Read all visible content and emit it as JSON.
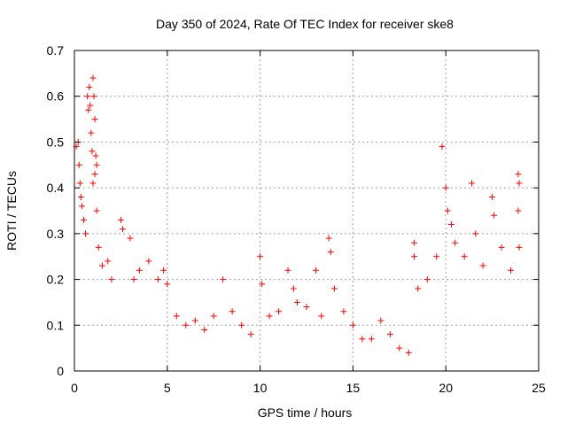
{
  "chart_data": {
    "type": "scatter",
    "title": "Day 350 of 2024, Rate Of TEC Index for receiver ske8",
    "xlabel": "GPS time / hours",
    "ylabel": "ROTI / TECUs",
    "xlim": [
      0,
      25
    ],
    "ylim": [
      0,
      0.7
    ],
    "xticks": [
      0,
      5,
      10,
      15,
      20,
      25
    ],
    "xtick_labels": [
      "0",
      "5",
      "10",
      "15",
      "20",
      "25"
    ],
    "yticks": [
      0,
      0.1,
      0.2,
      0.3,
      0.4,
      0.5,
      0.6,
      0.7
    ],
    "ytick_labels": [
      "0",
      "0.1",
      "0.2",
      "0.3",
      "0.4",
      "0.5",
      "0.6",
      "0.7"
    ],
    "grid": true,
    "marker": "+",
    "marker_color": "#ff0000",
    "series": [
      {
        "name": "ROTI",
        "points": [
          [
            0.1,
            0.49
          ],
          [
            0.2,
            0.5
          ],
          [
            0.25,
            0.45
          ],
          [
            0.3,
            0.41
          ],
          [
            0.35,
            0.38
          ],
          [
            0.4,
            0.36
          ],
          [
            0.5,
            0.33
          ],
          [
            0.6,
            0.3
          ],
          [
            0.7,
            0.6
          ],
          [
            0.75,
            0.57
          ],
          [
            0.8,
            0.62
          ],
          [
            0.85,
            0.58
          ],
          [
            0.9,
            0.52
          ],
          [
            0.95,
            0.48
          ],
          [
            1.0,
            0.64
          ],
          [
            1.05,
            0.6
          ],
          [
            1.1,
            0.55
          ],
          [
            1.15,
            0.47
          ],
          [
            1.2,
            0.45
          ],
          [
            1.1,
            0.43
          ],
          [
            1.0,
            0.41
          ],
          [
            1.2,
            0.35
          ],
          [
            1.3,
            0.27
          ],
          [
            1.5,
            0.23
          ],
          [
            1.8,
            0.24
          ],
          [
            2.0,
            0.2
          ],
          [
            2.5,
            0.33
          ],
          [
            2.6,
            0.31
          ],
          [
            3.0,
            0.29
          ],
          [
            3.2,
            0.2
          ],
          [
            3.5,
            0.22
          ],
          [
            4.0,
            0.24
          ],
          [
            4.5,
            0.2
          ],
          [
            4.8,
            0.22
          ],
          [
            5.0,
            0.19
          ],
          [
            5.5,
            0.12
          ],
          [
            6.0,
            0.1
          ],
          [
            6.5,
            0.11
          ],
          [
            7.0,
            0.09
          ],
          [
            7.5,
            0.12
          ],
          [
            8.0,
            0.2
          ],
          [
            8.5,
            0.13
          ],
          [
            9.0,
            0.1
          ],
          [
            9.5,
            0.08
          ],
          [
            10.0,
            0.25
          ],
          [
            10.1,
            0.19
          ],
          [
            10.5,
            0.12
          ],
          [
            11.0,
            0.13
          ],
          [
            11.5,
            0.22
          ],
          [
            11.8,
            0.18
          ],
          [
            12.0,
            0.15
          ],
          [
            12.5,
            0.14
          ],
          [
            13.0,
            0.22
          ],
          [
            13.3,
            0.12
          ],
          [
            13.7,
            0.29
          ],
          [
            13.8,
            0.26
          ],
          [
            14.0,
            0.18
          ],
          [
            14.5,
            0.13
          ],
          [
            15.0,
            0.1
          ],
          [
            15.5,
            0.07
          ],
          [
            16.0,
            0.07
          ],
          [
            16.5,
            0.11
          ],
          [
            17.0,
            0.08
          ],
          [
            17.5,
            0.05
          ],
          [
            18.0,
            0.04
          ],
          [
            18.3,
            0.28
          ],
          [
            18.3,
            0.25
          ],
          [
            18.5,
            0.18
          ],
          [
            19.0,
            0.2
          ],
          [
            19.5,
            0.25
          ],
          [
            19.8,
            0.49
          ],
          [
            20.0,
            0.4
          ],
          [
            20.1,
            0.35
          ],
          [
            20.3,
            0.32
          ],
          [
            20.5,
            0.28
          ],
          [
            21.0,
            0.25
          ],
          [
            21.4,
            0.41
          ],
          [
            21.6,
            0.3
          ],
          [
            22.0,
            0.23
          ],
          [
            22.5,
            0.38
          ],
          [
            22.6,
            0.34
          ],
          [
            23.0,
            0.27
          ],
          [
            23.5,
            0.22
          ],
          [
            23.9,
            0.43
          ],
          [
            23.95,
            0.41
          ],
          [
            23.9,
            0.35
          ],
          [
            23.95,
            0.27
          ]
        ]
      }
    ]
  }
}
